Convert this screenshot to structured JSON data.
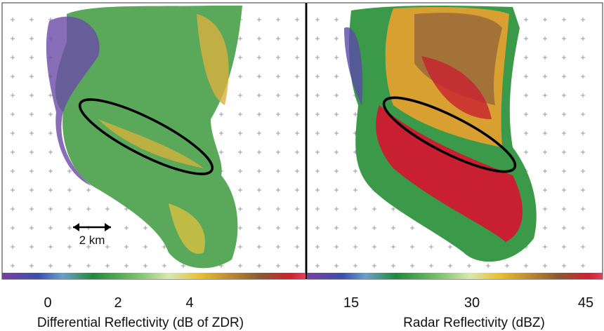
{
  "panels": [
    {
      "colorbar_ticks": [
        0,
        2,
        4
      ],
      "colorbar_label": "Differential Reflectivity (dB of ZDR)",
      "scale_label": "2 km"
    },
    {
      "colorbar_ticks": [
        15,
        30,
        45
      ],
      "colorbar_label": "Radar Reflectivity (dBZ)"
    }
  ]
}
